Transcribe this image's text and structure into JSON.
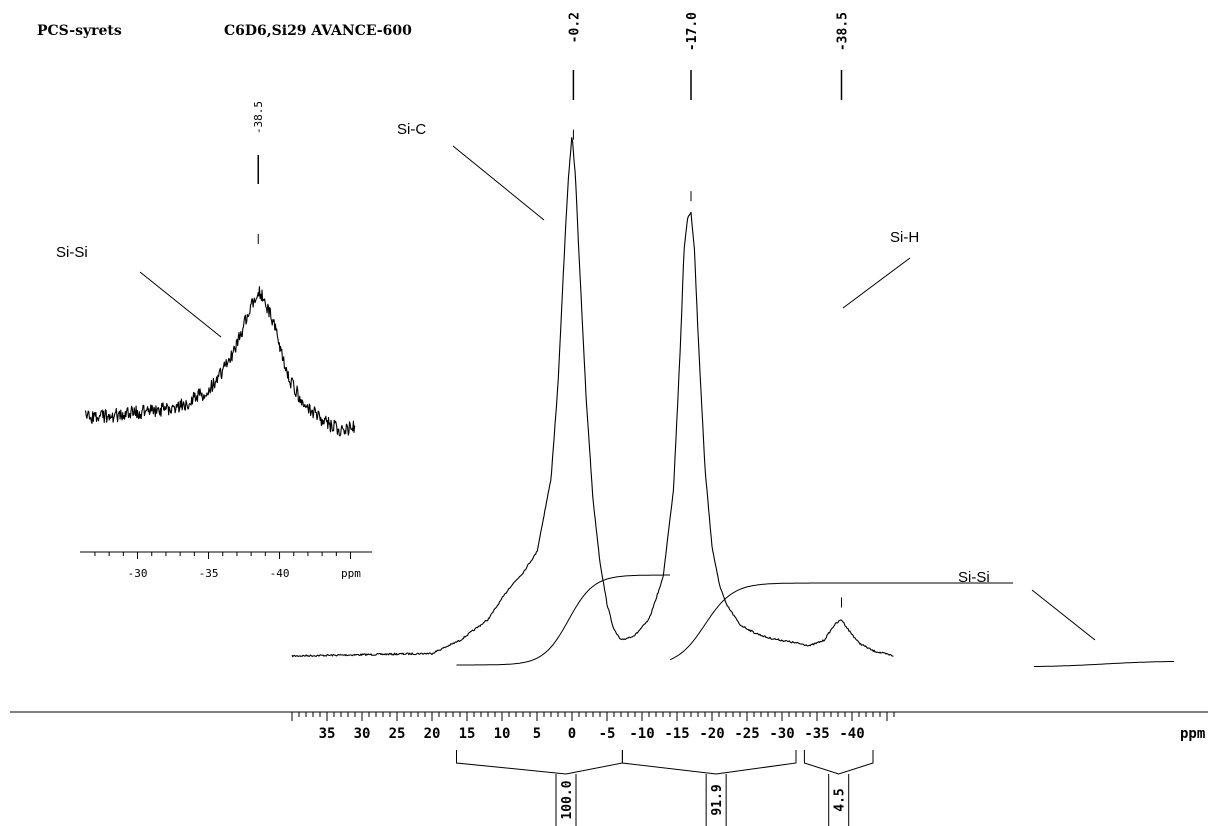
{
  "header": {
    "sample": "PCS-syrets",
    "conditions": "C6D6,Si29 AVANCE-600"
  },
  "chart_data": [
    {
      "type": "line",
      "title": "",
      "xlabel": "ppm",
      "ylabel": "",
      "x_reversed": true,
      "xlim": [
        40,
        -46
      ],
      "x_ticks": [
        35,
        30,
        25,
        20,
        15,
        10,
        5,
        0,
        -5,
        -10,
        -15,
        -20,
        -25,
        -30,
        -35,
        -40
      ],
      "x_tick_labels": [
        "35",
        "30",
        "25",
        "20",
        "15",
        "10",
        "5",
        "0",
        "-5",
        "-10",
        "-15",
        "-20",
        "-25",
        "-30",
        "-35",
        "-40"
      ],
      "ylim": [
        0,
        100
      ],
      "grid": false,
      "series": [
        {
          "x": [
            40,
            20,
            16,
            12,
            9,
            7,
            5,
            3,
            2,
            1,
            0.5,
            0,
            -0.5,
            -1,
            -2,
            -3,
            -4,
            -5,
            -6,
            -7,
            -9,
            -11,
            -13,
            -14.5,
            -15.5,
            -16,
            -16.5,
            -17,
            -17.5,
            -18,
            -19,
            -20,
            -21,
            -22,
            -24,
            -26,
            -28,
            -30,
            -32,
            -34,
            -36,
            -37.5,
            -38.5,
            -39.5,
            -41,
            -43,
            -46
          ],
          "y": [
            0,
            0.5,
            3,
            7,
            13,
            16,
            20,
            34,
            52,
            80,
            92,
            100,
            92,
            77,
            50,
            30,
            18,
            10,
            5,
            3,
            4,
            7,
            15,
            32,
            60,
            78,
            84,
            85,
            78,
            62,
            36,
            21,
            14,
            10,
            6,
            4.5,
            3.5,
            3,
            2.5,
            2,
            3,
            6,
            7,
            5,
            2.5,
            1,
            0
          ]
        }
      ],
      "peaks": [
        {
          "x": -0.2,
          "label": "-0.2"
        },
        {
          "x": -17.0,
          "label": "-17.0"
        },
        {
          "x": -38.5,
          "label": "-38.5"
        }
      ],
      "annotations": [
        "Si-C",
        "Si-H",
        "Si-Si"
      ],
      "integrals": [
        {
          "from": 16.5,
          "to": -7.2,
          "value": 100.0,
          "label": "100.0"
        },
        {
          "from": -7.2,
          "to": -32.0,
          "value": 91.9,
          "label": "91.9"
        },
        {
          "from": -33.2,
          "to": -43.0,
          "value": 4.5,
          "label": "4.5"
        }
      ]
    },
    {
      "type": "line",
      "title": "",
      "xlabel": "ppm",
      "ylabel": "",
      "x_reversed": true,
      "xlim": [
        -26.3,
        -45.3
      ],
      "x_ticks": [
        -30,
        -35,
        -40
      ],
      "x_tick_labels": [
        "-30",
        "-35",
        "-40"
      ],
      "ylim": [
        0,
        100
      ],
      "series": [
        {
          "x": [
            -26.3,
            -28,
            -30,
            -32,
            -33.5,
            -35,
            -36.5,
            -37.5,
            -38.5,
            -39.5,
            -40.5,
            -41.5,
            -42.5,
            -43.5,
            -44.5,
            -45.3
          ],
          "y": [
            12,
            13,
            15,
            17,
            20,
            27,
            43,
            62,
            82,
            65,
            36,
            22,
            14,
            8,
            5,
            8
          ]
        }
      ],
      "peaks": [
        {
          "x": -38.5,
          "label": "-38.5"
        }
      ],
      "annotations": [
        "Si-Si"
      ]
    }
  ]
}
